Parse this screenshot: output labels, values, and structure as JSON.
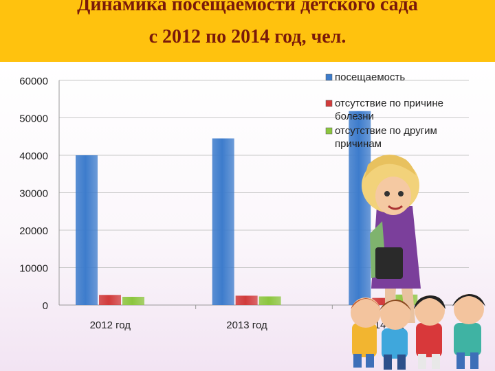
{
  "title": {
    "line1": "Динамика посещаемости детского сада",
    "line2": "с 2012 по 2014 год, чел."
  },
  "colors": {
    "header_bg": "#ffc20e",
    "title_text": "#7a1a0a",
    "series": [
      "#3d7ccc",
      "#d13b3b",
      "#8cc63e"
    ]
  },
  "chart_data": {
    "type": "bar",
    "categories": [
      "2012 год",
      "2013 год",
      "2014 год"
    ],
    "series": [
      {
        "name": "посещаемость",
        "values": [
          40000,
          44500,
          51800
        ]
      },
      {
        "name": "отсутствие по причине болезни",
        "values": [
          2700,
          2500,
          1900
        ]
      },
      {
        "name": "отсутствие по другим причинам",
        "values": [
          2200,
          2300,
          2800
        ]
      }
    ],
    "ylim": [
      0,
      60000
    ],
    "yticks": [
      0,
      10000,
      20000,
      30000,
      40000,
      50000,
      60000
    ],
    "grid": true,
    "legend_position": "top-right",
    "legend_lines": [
      [
        "посещаемость"
      ],
      [
        "отсутствие по причине",
        "болезни"
      ],
      [
        "отсутствие по другим",
        "причинам"
      ]
    ]
  },
  "decoration": {
    "teacher_icon": "teacher-illustration",
    "children_icon": "children-group-illustration"
  }
}
